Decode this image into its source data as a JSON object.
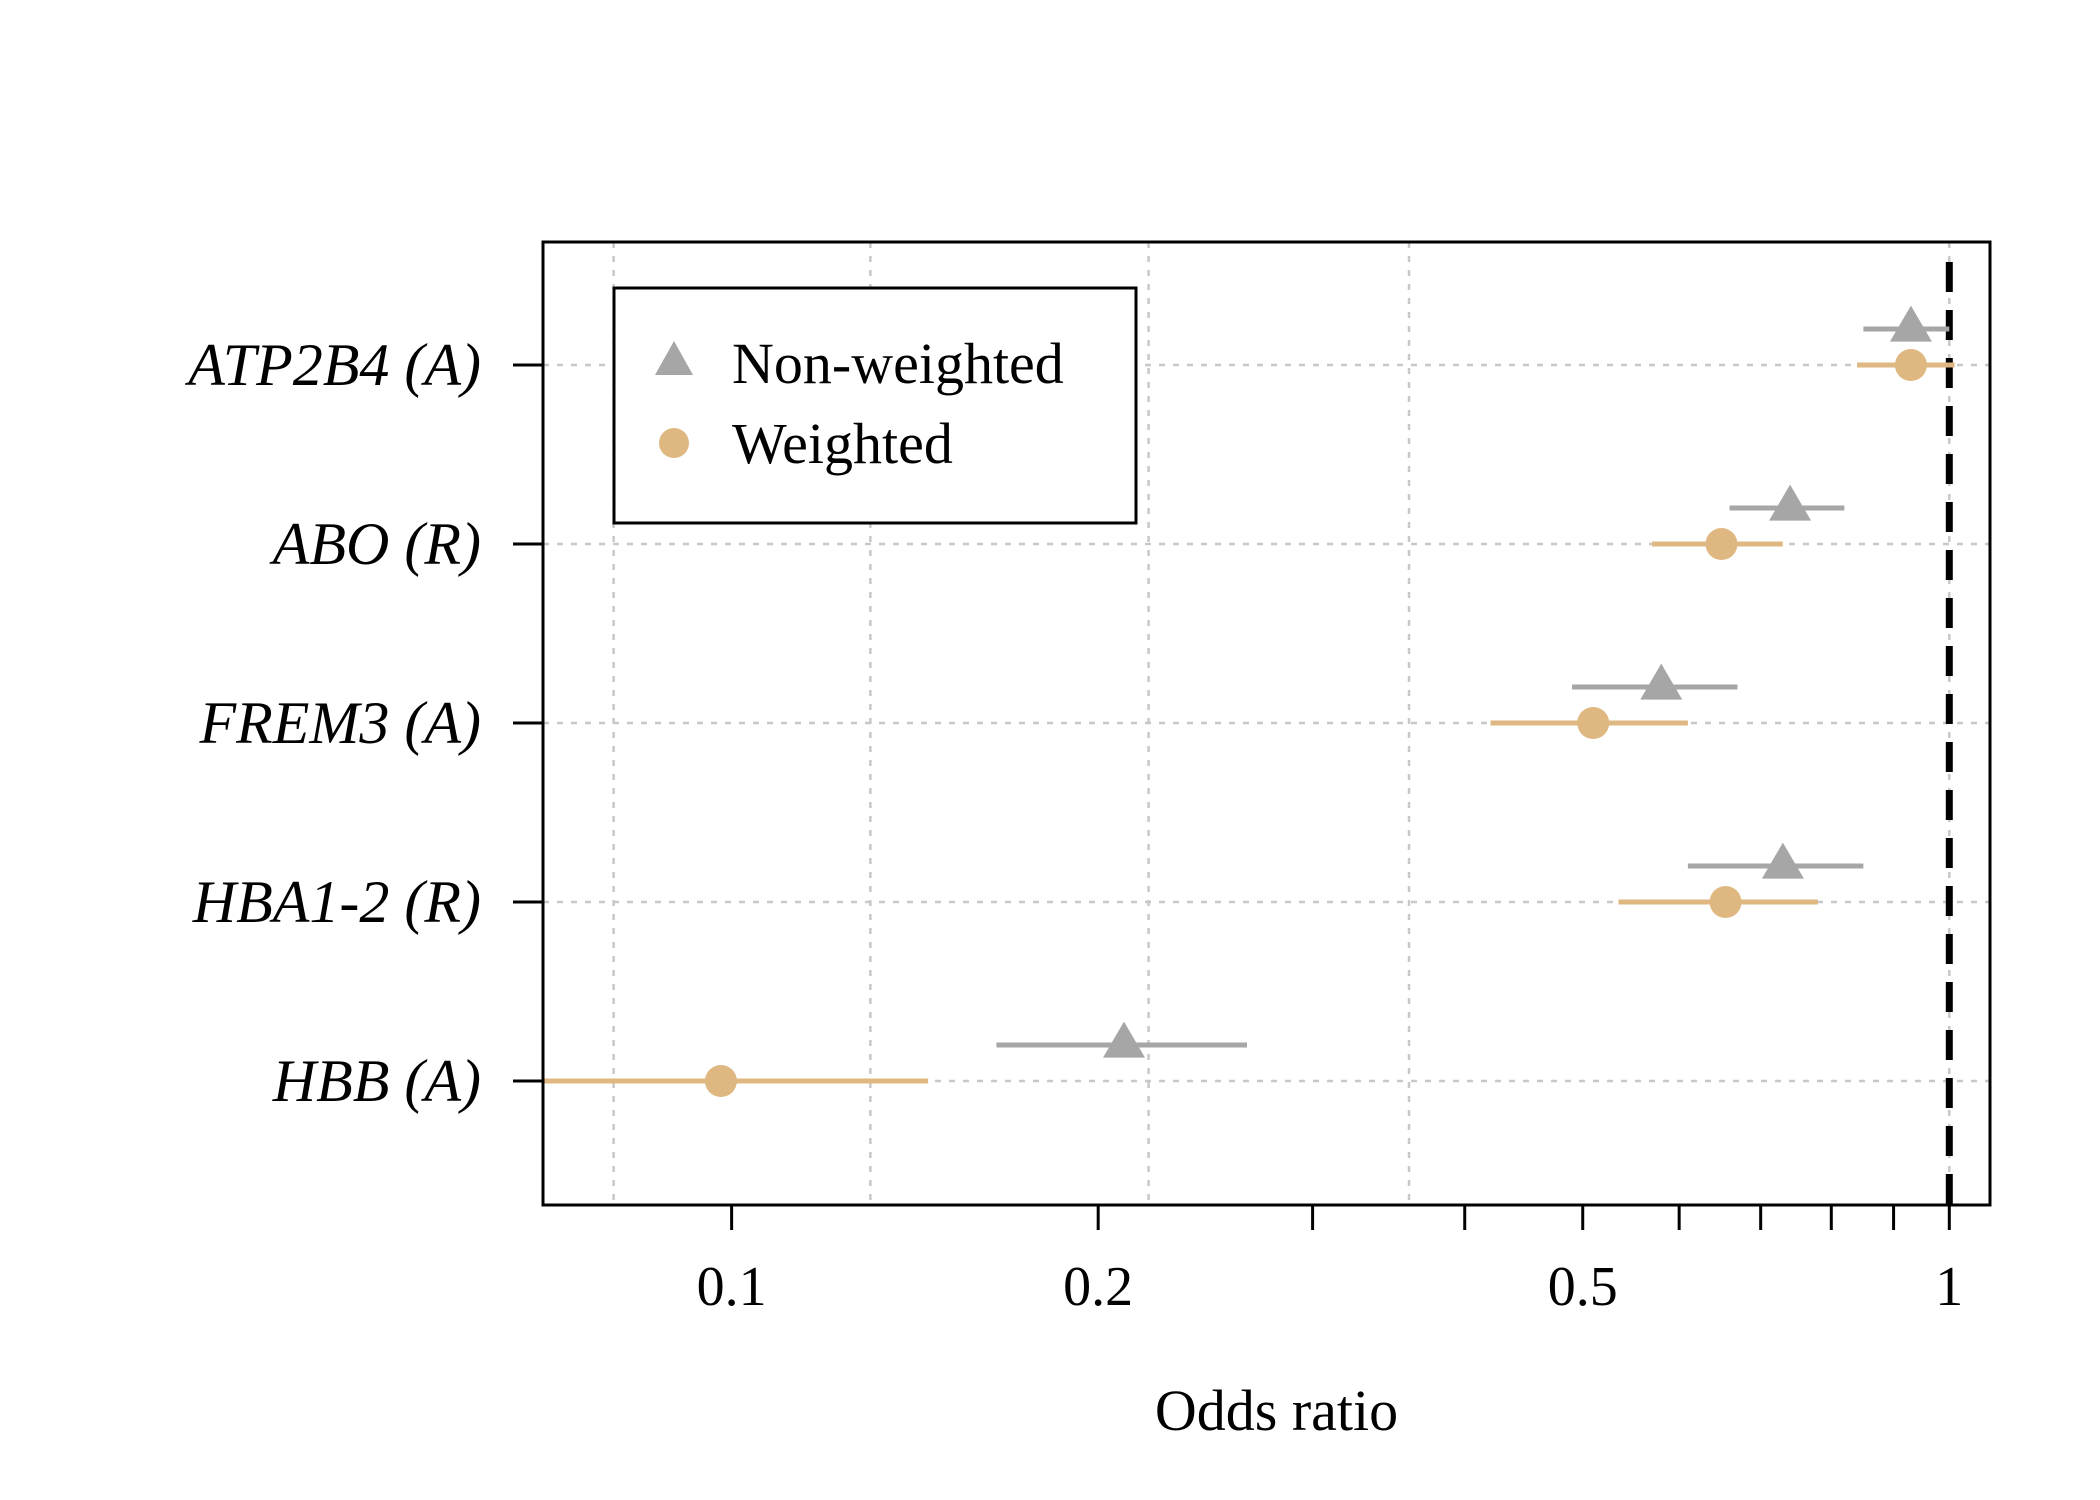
{
  "chart_data": {
    "type": "scatter",
    "title": "",
    "xlabel": "Odds ratio",
    "ylabel": "",
    "x_scale": "log",
    "xlim": [
      0.07,
      1.08
    ],
    "x_ticks": [
      0.1,
      0.2,
      0.5,
      1
    ],
    "x_tick_labels": [
      "0.1",
      "0.2",
      "0.5",
      "1"
    ],
    "x_minor_ticks": [
      0.3,
      0.4,
      0.6,
      0.7,
      0.8,
      0.9
    ],
    "x_grid": [
      0.08,
      0.13,
      0.22,
      0.36,
      1
    ],
    "grid": true,
    "reference_line": {
      "x": 1,
      "style": "dashed",
      "color": "#000000"
    },
    "categories": [
      "ATP2B4 (A)",
      "ABO (R)",
      "FREM3 (A)",
      "HBA1-2 (R)",
      "HBB (A)"
    ],
    "series": [
      {
        "name": "Non-weighted",
        "marker": "triangle",
        "color": "#a6a6a6",
        "values": [
          0.93,
          0.74,
          0.58,
          0.73,
          0.21
        ],
        "ci_lower": [
          0.85,
          0.66,
          0.49,
          0.61,
          0.165
        ],
        "ci_upper": [
          1.0,
          0.82,
          0.67,
          0.85,
          0.265
        ]
      },
      {
        "name": "Weighted",
        "marker": "circle",
        "color": "#dfb881",
        "values": [
          0.93,
          0.65,
          0.51,
          0.655,
          0.098
        ],
        "ci_lower": [
          0.84,
          0.57,
          0.42,
          0.535,
          0.07
        ],
        "ci_upper": [
          1.01,
          0.73,
          0.61,
          0.78,
          0.145
        ]
      }
    ],
    "legend": {
      "position": "top-left",
      "entries": [
        "Non-weighted",
        "Weighted"
      ]
    }
  }
}
